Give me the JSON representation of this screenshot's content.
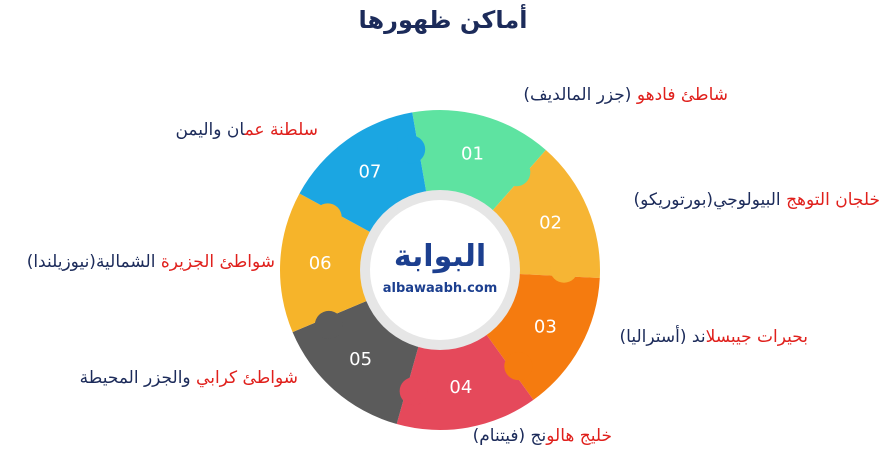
{
  "title": "أماكن ظهورها",
  "logo": {
    "name": "البوابة",
    "site": "albawaabh.com"
  },
  "segments": [
    {
      "number": "01",
      "highlight": "شاطئ فادهو",
      "rest": "(جزر المالديف)"
    },
    {
      "number": "02",
      "highlight": "خلجان التوهج",
      "rest": "البيولوجي(بورتوريكو)"
    },
    {
      "number": "03",
      "highlight": "بحيرات جيبسلا",
      "rest": "ند (أستراليا)"
    },
    {
      "number": "04",
      "highlight": "خليج هالو",
      "rest": "نج (فيتنام)"
    },
    {
      "number": "05",
      "highlight": "شواطئ كرابي",
      "rest": "والجزر المحيطة"
    },
    {
      "number": "06",
      "highlight": "شواطئ الجزيرة",
      "rest": "الشمالية(نيوزيلندا)"
    },
    {
      "number": "07",
      "highlight": "سلطنة عم",
      "rest": "ان واليمن"
    }
  ]
}
